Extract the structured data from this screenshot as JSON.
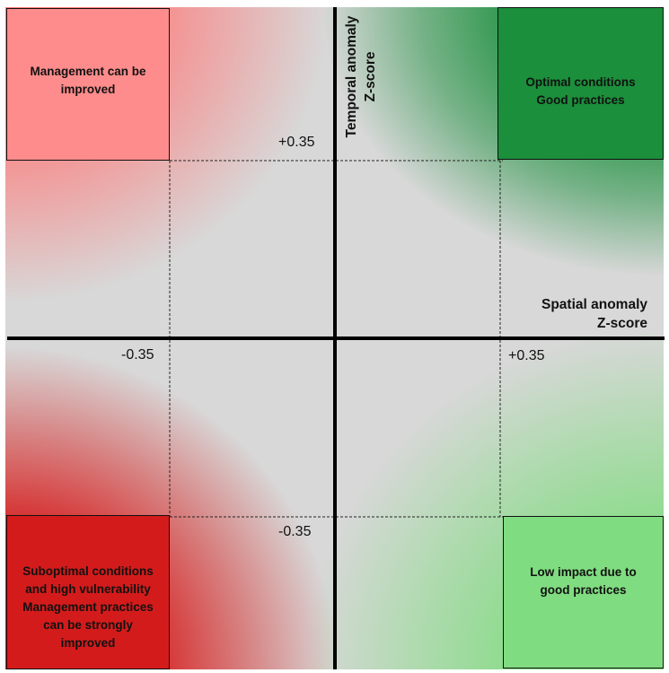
{
  "quadrants": {
    "top_left": {
      "label": "Management can be\nimproved",
      "color": "#ff8c8c"
    },
    "top_right": {
      "label": "Optimal conditions\nGood practices",
      "color": "#1b8f3b"
    },
    "bottom_left": {
      "label": "Suboptimal conditions\nand high vulnerability\nManagement practices\ncan be strongly\nimproved",
      "color": "#d41b1b"
    },
    "bottom_right": {
      "label": "Low impact due to\ngood practices",
      "color": "#80dc80"
    }
  },
  "axes": {
    "x_label": "Spatial anomaly\nZ-score",
    "y_label": "Temporal anomaly\nZ-score"
  },
  "thresholds": {
    "top": "+0.35",
    "left": "-0.35",
    "right": "+0.35",
    "bottom": "-0.35"
  }
}
